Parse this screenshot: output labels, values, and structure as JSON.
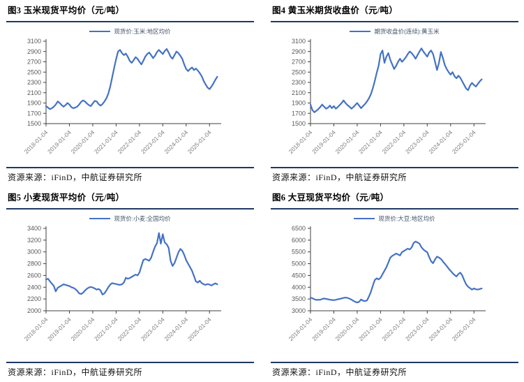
{
  "source_label": "资源来源：iFinD，中航证券研究所",
  "colors": {
    "divider": "#1f3864",
    "series_line": "#4472c4",
    "axis_line": "#404040",
    "ytick_text": "#595959",
    "xtick_text": "#808080"
  },
  "chart_data": [
    {
      "type": "line",
      "title": "图3 玉米现货平均价（元/吨）",
      "legend_position": "top-center",
      "grid": false,
      "ylim": [
        1500,
        3100
      ],
      "ytick_step": 200,
      "x_domain": 90,
      "xticks": [
        "2018-01-04",
        "2019-01-04",
        "2020-01-04",
        "2021-01-04",
        "2022-01-04",
        "2023-01-04",
        "2024-01-04",
        "2025-01-04"
      ],
      "xtick_index": [
        0,
        12,
        24,
        36,
        48,
        60,
        72,
        84
      ],
      "series": [
        {
          "name": "现货价:玉米:地区均价",
          "values": [
            1840,
            1810,
            1780,
            1800,
            1830,
            1870,
            1930,
            1900,
            1860,
            1830,
            1860,
            1900,
            1870,
            1820,
            1800,
            1810,
            1830,
            1870,
            1920,
            1950,
            1930,
            1890,
            1860,
            1840,
            1890,
            1940,
            1930,
            1880,
            1850,
            1880,
            1930,
            1990,
            2080,
            2220,
            2400,
            2580,
            2750,
            2900,
            2930,
            2870,
            2830,
            2860,
            2800,
            2720,
            2680,
            2730,
            2790,
            2760,
            2700,
            2650,
            2720,
            2800,
            2850,
            2880,
            2830,
            2770,
            2820,
            2890,
            2930,
            2890,
            2850,
            2910,
            2950,
            2880,
            2800,
            2760,
            2830,
            2900,
            2870,
            2820,
            2760,
            2650,
            2560,
            2520,
            2560,
            2590,
            2540,
            2570,
            2530,
            2480,
            2420,
            2330,
            2260,
            2200,
            2170,
            2220,
            2280,
            2350,
            2410
          ]
        }
      ]
    },
    {
      "type": "line",
      "title": "图4 黄玉米期货收盘价（元/吨）",
      "legend_position": "top-center",
      "grid": false,
      "ylim": [
        1500,
        3100
      ],
      "ytick_step": 200,
      "x_domain": 90,
      "xticks": [
        "2018-01-04",
        "2019-01-04",
        "2020-01-04",
        "2021-01-04",
        "2022-01-04",
        "2023-01-04",
        "2024-01-04",
        "2025-01-04"
      ],
      "xtick_index": [
        0,
        12,
        24,
        36,
        48,
        60,
        72,
        84
      ],
      "series": [
        {
          "name": "期货收盘价(连续):黄玉米",
          "values": [
            1870,
            1760,
            1720,
            1750,
            1780,
            1820,
            1870,
            1830,
            1790,
            1810,
            1850,
            1800,
            1840,
            1790,
            1820,
            1860,
            1900,
            1950,
            1900,
            1860,
            1830,
            1790,
            1820,
            1860,
            1900,
            1850,
            1800,
            1840,
            1880,
            1930,
            1990,
            2070,
            2180,
            2320,
            2480,
            2620,
            2850,
            2920,
            2680,
            2800,
            2870,
            2740,
            2650,
            2560,
            2620,
            2700,
            2760,
            2700,
            2740,
            2790,
            2850,
            2900,
            2870,
            2820,
            2760,
            2830,
            2900,
            2960,
            2900,
            2850,
            2800,
            2880,
            2920,
            2850,
            2700,
            2540,
            2680,
            2890,
            2780,
            2640,
            2560,
            2500,
            2450,
            2500,
            2420,
            2380,
            2430,
            2390,
            2320,
            2250,
            2180,
            2150,
            2240,
            2290,
            2250,
            2220,
            2270,
            2320,
            2360
          ]
        }
      ]
    },
    {
      "type": "line",
      "title": "图5 小麦现货平均价（元/吨）",
      "legend_position": "top-center",
      "grid": false,
      "ylim": [
        2000,
        3400
      ],
      "ytick_step": 200,
      "x_domain": 90,
      "xticks": [
        "2018-01-04",
        "2019-01-04",
        "2020-01-04",
        "2021-01-04",
        "2022-01-04",
        "2023-01-04",
        "2024-01-04",
        "2025-01-04"
      ],
      "xtick_index": [
        0,
        12,
        24,
        36,
        48,
        60,
        72,
        84
      ],
      "series": [
        {
          "name": "现货价:小麦:全国均价",
          "values": [
            2530,
            2545,
            2500,
            2460,
            2420,
            2330,
            2390,
            2410,
            2430,
            2450,
            2440,
            2430,
            2420,
            2400,
            2390,
            2370,
            2340,
            2295,
            2285,
            2305,
            2345,
            2375,
            2395,
            2405,
            2395,
            2380,
            2360,
            2370,
            2345,
            2275,
            2295,
            2345,
            2400,
            2445,
            2470,
            2460,
            2455,
            2445,
            2440,
            2450,
            2480,
            2560,
            2545,
            2555,
            2575,
            2595,
            2615,
            2600,
            2650,
            2760,
            2860,
            2880,
            2865,
            2850,
            2900,
            3000,
            3090,
            3150,
            3320,
            3140,
            3300,
            3160,
            3130,
            3070,
            2850,
            2760,
            2810,
            2900,
            2990,
            3050,
            3020,
            2950,
            2860,
            2800,
            2740,
            2680,
            2590,
            2500,
            2480,
            2510,
            2470,
            2450,
            2440,
            2455,
            2445,
            2430,
            2450,
            2465,
            2450
          ]
        }
      ]
    },
    {
      "type": "line",
      "title": "图6 大豆现货平均价（元/吨）",
      "legend_position": "top-center",
      "grid": false,
      "ylim": [
        3000,
        6500
      ],
      "ytick_step": 500,
      "x_domain": 90,
      "xticks": [
        "2018-01-04",
        "2019-01-04",
        "2020-01-04",
        "2021-01-04",
        "2022-01-04",
        "2023-01-04",
        "2024-01-04",
        "2025-01-04"
      ],
      "xtick_index": [
        0,
        12,
        24,
        36,
        48,
        60,
        72,
        84
      ],
      "series": [
        {
          "name": "现货价:大豆:地区均价",
          "values": [
            3560,
            3530,
            3490,
            3460,
            3470,
            3465,
            3500,
            3520,
            3505,
            3485,
            3470,
            3460,
            3450,
            3465,
            3485,
            3505,
            3525,
            3545,
            3560,
            3545,
            3515,
            3475,
            3420,
            3380,
            3350,
            3380,
            3480,
            3430,
            3410,
            3440,
            3600,
            3800,
            4050,
            4300,
            4380,
            4330,
            4400,
            4550,
            4700,
            4850,
            5050,
            5250,
            5330,
            5380,
            5430,
            5390,
            5350,
            5490,
            5540,
            5590,
            5640,
            5600,
            5690,
            5880,
            5940,
            5900,
            5850,
            5700,
            5600,
            5540,
            5490,
            5280,
            5100,
            5020,
            5180,
            5300,
            5260,
            5200,
            5100,
            5000,
            4900,
            4790,
            4700,
            4600,
            4520,
            4460,
            4560,
            4620,
            4500,
            4300,
            4120,
            4020,
            3960,
            3900,
            3950,
            3915,
            3900,
            3925,
            3945
          ]
        }
      ]
    }
  ]
}
